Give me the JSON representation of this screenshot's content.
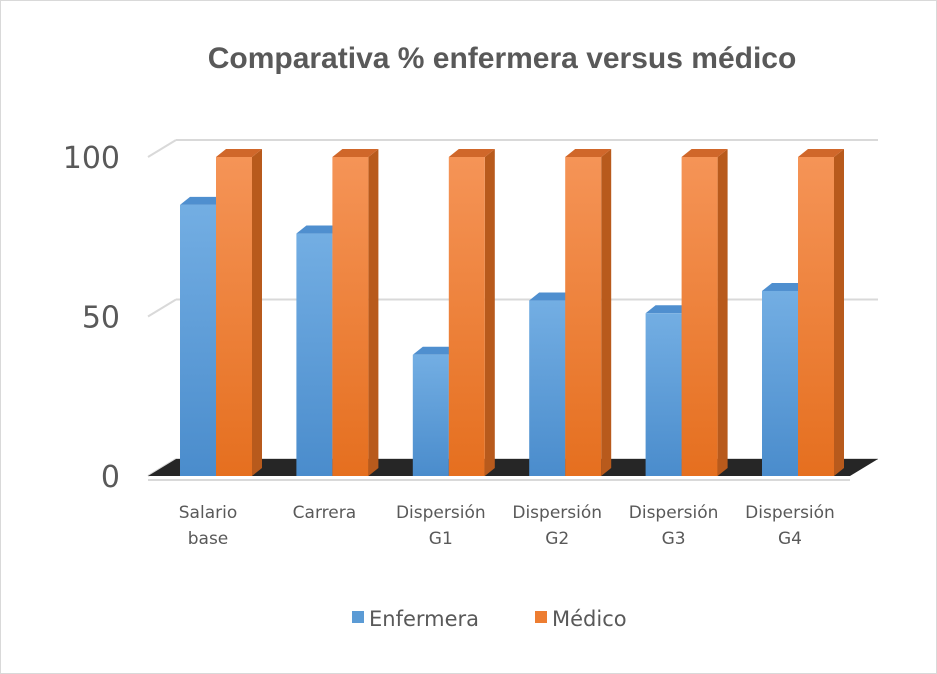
{
  "chart_data": {
    "type": "bar",
    "title": "Comparativa % enfermera versus médico",
    "xlabel": "",
    "ylabel": "",
    "categories": [
      [
        "Salario",
        "base"
      ],
      [
        "Carrera"
      ],
      [
        "Dispersión",
        "G1"
      ],
      [
        "Dispersión",
        "G2"
      ],
      [
        "Dispersión",
        "G3"
      ],
      [
        "Dispersión",
        "G4"
      ]
    ],
    "series": [
      {
        "name": "Enfermera",
        "values": [
          85,
          76,
          38,
          55,
          51,
          58
        ],
        "color": "#5b9bd5"
      },
      {
        "name": "Médico",
        "values": [
          100,
          100,
          100,
          100,
          100,
          100
        ],
        "color": "#ed7d31"
      }
    ],
    "ylim": [
      0,
      100
    ],
    "yticks": [
      "0",
      "50",
      "100"
    ],
    "grid": true,
    "legend": "bottom",
    "style": "3d-clustered-column"
  }
}
